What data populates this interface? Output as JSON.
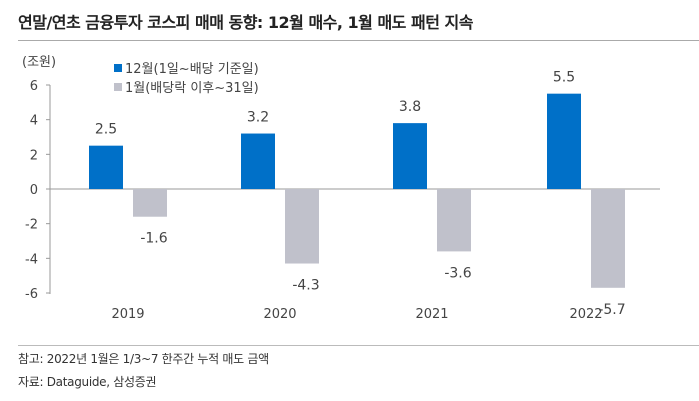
{
  "title": "연말/연초 금융투자 코스피 매매 동향: 12월 매수, 1월 매도 패턴 지속",
  "notes": [
    "참고: 2022년 1월은 1/3~7 한주간 누적 매도 금액",
    "자료: Dataguide, 삼성증권"
  ],
  "chart_data": {
    "type": "bar",
    "unit_label": "(조원)",
    "categories": [
      "2019",
      "2020",
      "2021",
      "2022"
    ],
    "series": [
      {
        "name": "12월(1일~배당 기준일)",
        "color": "#0070C8",
        "values": [
          2.5,
          3.2,
          3.8,
          5.5
        ],
        "labels": [
          "2.5",
          "3.2",
          "3.8",
          "5.5"
        ]
      },
      {
        "name": "1월(배당락 이후~31일)",
        "color": "#C0C1CB",
        "values": [
          -1.6,
          -4.3,
          -3.6,
          -5.7
        ],
        "labels": [
          "-1.6",
          "-4.3",
          "-3.6",
          "-5.7"
        ]
      }
    ],
    "ylim": [
      -6,
      6
    ],
    "yticks": [
      6,
      4,
      2,
      0,
      -2,
      -4,
      -6
    ],
    "ytick_labels": [
      "6",
      "4",
      "2",
      "0",
      "-2",
      "-4",
      "-6"
    ],
    "legend": "top-left",
    "grid": false
  }
}
